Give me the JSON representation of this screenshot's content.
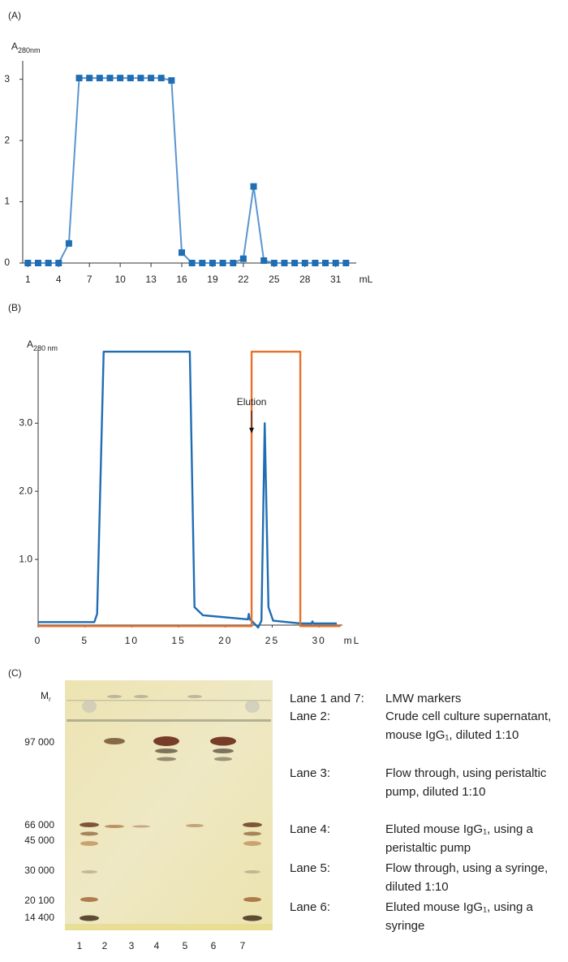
{
  "chart_data": [
    {
      "type": "line",
      "panel": "(A)",
      "y_label": "A",
      "y_label_sub": "280nm",
      "x_label": "mL",
      "x": [
        1,
        2,
        3,
        4,
        5,
        6,
        7,
        8,
        9,
        10,
        11,
        12,
        13,
        14,
        15,
        16,
        17,
        18,
        19,
        20,
        21,
        22,
        23,
        24,
        25,
        26,
        27,
        28,
        29,
        30,
        31,
        32
      ],
      "series": [
        {
          "color": "#1f6db3",
          "line_color": "#5b95d0",
          "markers": true,
          "values": [
            0,
            0,
            0,
            0,
            0.32,
            3.02,
            3.02,
            3.02,
            3.02,
            3.02,
            3.02,
            3.02,
            3.02,
            3.02,
            2.98,
            0.17,
            0,
            0,
            0,
            0,
            0,
            0.07,
            1.25,
            0.04,
            0,
            0,
            0,
            0,
            0,
            0,
            0,
            0
          ]
        }
      ],
      "xlim": [
        0.5,
        33
      ],
      "xticks": [
        1,
        4,
        7,
        10,
        13,
        16,
        19,
        22,
        25,
        28,
        31
      ],
      "ylim": [
        0,
        3.3
      ],
      "yticks": [
        0,
        1,
        2,
        3
      ]
    },
    {
      "type": "line",
      "panel": "(B)",
      "y_label": "A",
      "y_label_sub": "280 nm",
      "x_label": "mL",
      "series": [
        {
          "color": "#1f6db3",
          "markers": false,
          "x": [
            0,
            6,
            6.3,
            7,
            16.2,
            16.7,
            17.6,
            22.4,
            22.5,
            22.6,
            22.8,
            23.5,
            23.85,
            24.2,
            24.6,
            25.1,
            28,
            29.2,
            29.3,
            29.4,
            31.9
          ],
          "values": [
            0.08,
            0.08,
            0.2,
            4.05,
            4.05,
            0.3,
            0.18,
            0.12,
            0.2,
            0.12,
            0.1,
            0.0,
            0.1,
            3.0,
            0.3,
            0.1,
            0.06,
            0.06,
            0.09,
            0.06,
            0.06
          ]
        },
        {
          "color": "#e8702a",
          "markers": false,
          "x": [
            0,
            22.8,
            22.8,
            28,
            28,
            32.3
          ],
          "values": [
            0.02,
            0.02,
            4.05,
            4.05,
            0.02,
            0.02
          ]
        }
      ],
      "annotation": {
        "text": "Elution",
        "x": 22.8,
        "y": 2.85
      },
      "xlim": [
        0,
        32.5
      ],
      "xticks": [
        0,
        5,
        10,
        15,
        20,
        25,
        30
      ],
      "ylim": [
        0,
        4.1
      ],
      "yticks": [
        {
          "value": 1,
          "label": "1.0"
        },
        {
          "value": 2,
          "label": "2.0"
        },
        {
          "value": 3,
          "label": "3.0"
        }
      ]
    }
  ],
  "gel": {
    "panel": "(C)",
    "y_label": "M",
    "y_label_sub": "r",
    "markers": [
      "97 000",
      "66 000",
      "45 000",
      "30 000",
      "20 100",
      "14 400"
    ],
    "lanes": [
      "1",
      "2",
      "3",
      "4",
      "5",
      "6",
      "7"
    ],
    "legend": [
      {
        "label": "Lane 1 and 7:",
        "text": "LMW markers"
      },
      {
        "label": "Lane 2:",
        "text": "Crude cell culture supernatant, mouse IgG₁, diluted 1:10"
      },
      {
        "label": "Lane 3:",
        "text": "Flow through, using peristaltic pump, diluted 1:10"
      },
      {
        "label": "Lane 4:",
        "text": "Eluted mouse IgG₁, using a peristaltic pump"
      },
      {
        "label": "Lane 5:",
        "text": "Flow through, using a syringe, diluted 1:10"
      },
      {
        "label": "Lane 6:",
        "text": "Eluted mouse IgG₁, using a syringe"
      }
    ]
  }
}
